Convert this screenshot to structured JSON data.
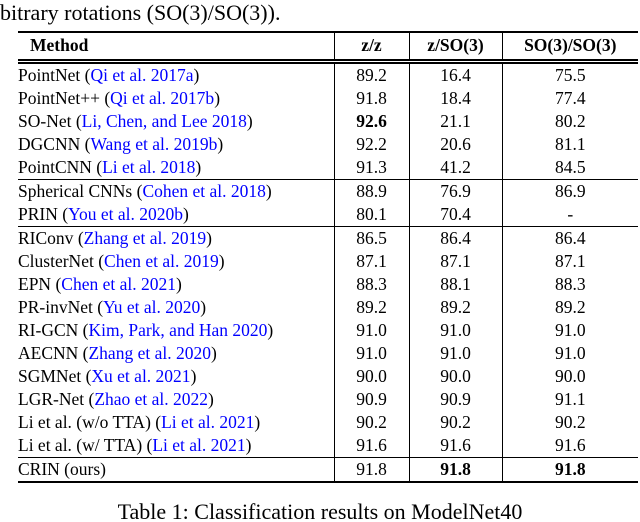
{
  "page": {
    "context_line": "bitrary rotations (SO(3)/SO(3)).",
    "caption": "Table 1: Classification results on ModelNet40"
  },
  "colors": {
    "citation_link": "#0000ff",
    "text": "#000000",
    "background": "#ffffff"
  },
  "table": {
    "columns": [
      "Method",
      "z/z",
      "z/SO(3)",
      "SO(3)/SO(3)"
    ],
    "groups": [
      {
        "rows": [
          {
            "method": "PointNet",
            "citation": "Qi et al. 2017a",
            "values": [
              "89.2",
              "16.4",
              "75.5"
            ],
            "bold": [
              false,
              false,
              false
            ]
          },
          {
            "method": "PointNet++",
            "citation": "Qi et al. 2017b",
            "values": [
              "91.8",
              "18.4",
              "77.4"
            ],
            "bold": [
              false,
              false,
              false
            ]
          },
          {
            "method": "SO-Net",
            "citation": "Li, Chen, and Lee 2018",
            "values": [
              "92.6",
              "21.1",
              "80.2"
            ],
            "bold": [
              true,
              false,
              false
            ]
          },
          {
            "method": "DGCNN",
            "citation": "Wang et al. 2019b",
            "values": [
              "92.2",
              "20.6",
              "81.1"
            ],
            "bold": [
              false,
              false,
              false
            ]
          },
          {
            "method": "PointCNN",
            "citation": "Li et al. 2018",
            "values": [
              "91.3",
              "41.2",
              "84.5"
            ],
            "bold": [
              false,
              false,
              false
            ]
          }
        ]
      },
      {
        "rows": [
          {
            "method": "Spherical CNNs",
            "citation": "Cohen et al. 2018",
            "values": [
              "88.9",
              "76.9",
              "86.9"
            ],
            "bold": [
              false,
              false,
              false
            ]
          },
          {
            "method": "PRIN",
            "citation": "You et al. 2020b",
            "values": [
              "80.1",
              "70.4",
              "-"
            ],
            "bold": [
              false,
              false,
              false
            ]
          }
        ]
      },
      {
        "rows": [
          {
            "method": "RIConv",
            "citation": "Zhang et al. 2019",
            "values": [
              "86.5",
              "86.4",
              "86.4"
            ],
            "bold": [
              false,
              false,
              false
            ]
          },
          {
            "method": "ClusterNet",
            "citation": "Chen et al. 2019",
            "values": [
              "87.1",
              "87.1",
              "87.1"
            ],
            "bold": [
              false,
              false,
              false
            ]
          },
          {
            "method": "EPN",
            "citation": "Chen et al. 2021",
            "values": [
              "88.3",
              "88.1",
              "88.3"
            ],
            "bold": [
              false,
              false,
              false
            ]
          },
          {
            "method": "PR-invNet",
            "citation": "Yu et al. 2020",
            "values": [
              "89.2",
              "89.2",
              "89.2"
            ],
            "bold": [
              false,
              false,
              false
            ]
          },
          {
            "method": "RI-GCN",
            "citation": "Kim, Park, and Han 2020",
            "values": [
              "91.0",
              "91.0",
              "91.0"
            ],
            "bold": [
              false,
              false,
              false
            ]
          },
          {
            "method": "AECNN",
            "citation": "Zhang et al. 2020",
            "values": [
              "91.0",
              "91.0",
              "91.0"
            ],
            "bold": [
              false,
              false,
              false
            ]
          },
          {
            "method": "SGMNet",
            "citation": "Xu et al. 2021",
            "values": [
              "90.0",
              "90.0",
              "90.0"
            ],
            "bold": [
              false,
              false,
              false
            ]
          },
          {
            "method": "LGR-Net",
            "citation": "Zhao et al. 2022",
            "values": [
              "90.9",
              "90.9",
              "91.1"
            ],
            "bold": [
              false,
              false,
              false
            ]
          },
          {
            "method": "Li et al. (w/o TTA)",
            "citation": "Li et al. 2021",
            "values": [
              "90.2",
              "90.2",
              "90.2"
            ],
            "bold": [
              false,
              false,
              false
            ]
          },
          {
            "method": "Li et al. (w/ TTA)",
            "citation": "Li et al. 2021",
            "values": [
              "91.6",
              "91.6",
              "91.6"
            ],
            "bold": [
              false,
              false,
              false
            ]
          }
        ]
      },
      {
        "rows": [
          {
            "method": "CRIN (ours)",
            "citation": "",
            "values": [
              "91.8",
              "91.8",
              "91.8"
            ],
            "bold": [
              false,
              true,
              true
            ]
          }
        ]
      }
    ]
  }
}
